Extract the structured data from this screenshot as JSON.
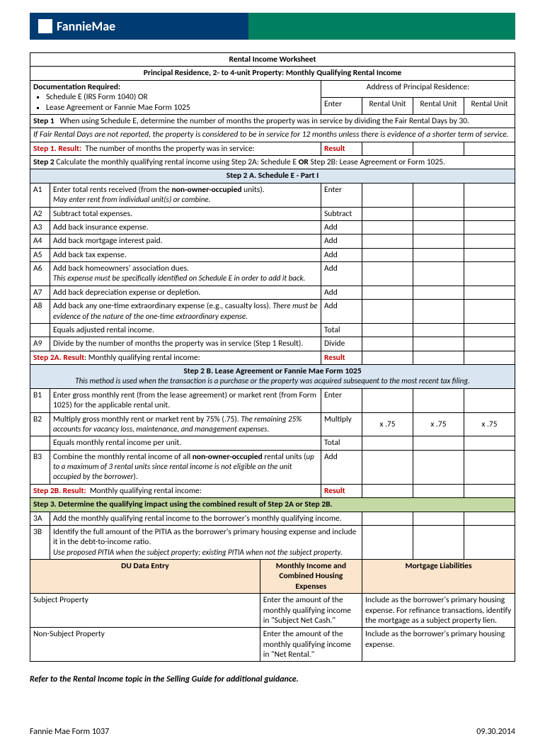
{
  "brand": "FannieMae",
  "title1": "Rental Income Worksheet",
  "title2": "Principal Residence, 2- to 4-unit Property:  Monthly Qualifying Rental Income",
  "doc_required_label": "Documentation Required:",
  "doc_bullets": [
    "Schedule E (IRS Form 1040) OR",
    "Lease Agreement or Fannie Mae Form 1025"
  ],
  "address_label": "Address of Principal Residence:",
  "enter_label": "Enter",
  "unit_label": "Rental Unit",
  "step1_text": "When using Schedule E, determine the number of months the property was in service by dividing the Fair Rental Days by 30.",
  "step1_label": "Step 1",
  "step1_italic": "If Fair Rental Days are not reported, the property is considered to be in service for 12 months unless there is evidence of a shorter term of service.",
  "step1_result_label": "Step 1.  Result:",
  "step1_result_text": "The number of months the property was in service:",
  "result_word": "Result",
  "step2_text": "Calculate the monthly qualifying rental income using Step 2A:  Schedule E",
  "step2_label": "Step 2",
  "step2_or": "OR",
  "step2_text_b": "Step 2B: Lease Agreement or Form 1025.",
  "step2a_header": "Step 2 A.  Schedule E - Part I",
  "rows2a": {
    "a1": {
      "code": "A1",
      "text": "Enter total rents received (from the ",
      "bold": "non-owner-occupied",
      "text2": " units).",
      "italic": "May enter rent from individual unit(s) or combine.",
      "action": "Enter"
    },
    "a2": {
      "code": "A2",
      "text": "Subtract total expenses.",
      "action": "Subtract"
    },
    "a3": {
      "code": "A3",
      "text": "Add back insurance expense.",
      "action": "Add"
    },
    "a4": {
      "code": "A4",
      "text": "Add back mortgage interest paid.",
      "action": "Add"
    },
    "a5": {
      "code": "A5",
      "text": "Add back tax expense.",
      "action": "Add"
    },
    "a6": {
      "code": "A6",
      "text": "Add back homeowners' association dues.",
      "italic": "This expense must be specifically identified on Schedule E in order to add it back.",
      "action": "Add"
    },
    "a7": {
      "code": "A7",
      "text": "Add back depreciation expense or depletion.",
      "action": "Add"
    },
    "a8": {
      "code": "A8",
      "text": "Add back any one-time extraordinary expense (e.g., casualty loss).  ",
      "italic": "There must be evidence of the nature of the one-time extraordinary expense.",
      "action": "Add"
    },
    "eq": {
      "text": "Equals adjusted rental income.",
      "action": "Total"
    },
    "a9": {
      "code": "A9",
      "text": "Divide by the number of months the property was in service (Step 1 Result).",
      "action": "Divide"
    }
  },
  "step2a_result_label": "Step 2A.  Result",
  "step2a_result_text": ":  Monthly qualifying rental income:",
  "step2b_header": "Step 2 B. Lease Agreement or Fannie Mae Form 1025",
  "step2b_italic": "This method is used when the transaction is a purchase or the property was acquired subsequent to the most recent tax filing.",
  "rows2b": {
    "b1": {
      "code": "B1",
      "text": "Enter gross monthly rent (from the lease agreement) or market rent (from Form 1025) for the applicable rental unit.",
      "action": "Enter"
    },
    "b2": {
      "code": "B2",
      "text": "Multiply gross monthly rent or market rent by 75% (.75).   ",
      "italic": "The remaining 25% accounts for vacancy loss, maintenance, and management expenses.",
      "action": "Multiply",
      "unit": "x .75"
    },
    "eq": {
      "text": "Equals monthly rental income per unit.",
      "action": "Total"
    },
    "b3": {
      "code": "B3",
      "text": "Combine the monthly rental income of all ",
      "bold": "non-owner-occupied",
      "text2": " rental units (",
      "italic": "up to a maximum of 3 rental units since rental income is not eligible on the unit occupied by the borrower",
      "text3": ")."
    }
  },
  "step2b_result_label": "Step 2B.  Result:",
  "step2b_result_text": "Monthly qualifying rental income:",
  "step3_header": "Step 3.   Determine the qualifying impact using the combined result of Step 2A or Step 2B.",
  "rows3": {
    "r3a": {
      "code": "3A",
      "text": "Add the monthly qualifying rental income to the borrower's monthly qualifying income."
    },
    "r3b": {
      "code": "3B",
      "text": "Identify the full amount of the PITIA as the borrower's primary housing expense and include it in the debt-to-income ratio.",
      "italic": "Use proposed PITIA when the subject property; existing PITIA when not the subject property."
    }
  },
  "du": {
    "h1": "DU Data Entry",
    "h2": "Monthly Income and Combined Housing Expenses",
    "h3": "Mortgage Liabilities",
    "r1": {
      "c1": "Subject Property",
      "c2": "Enter the amount of the monthly qualifying income in \"Subject Net Cash.\"",
      "c3": "Include as the borrower's primary housing expense.  For refinance transactions, identify the mortgage as a subject property lien."
    },
    "r2": {
      "c1": "Non-Subject Property",
      "c2": "Enter the amount of the monthly qualifying income in \"Net Rental.\"",
      "c3": "Include as the borrower's primary housing expense."
    }
  },
  "footer_note": "Refer to the Rental Income topic in the Selling Guide for additional guidance.",
  "form_id": "Fannie Mae Form 1037",
  "form_date": "09.30.2014"
}
